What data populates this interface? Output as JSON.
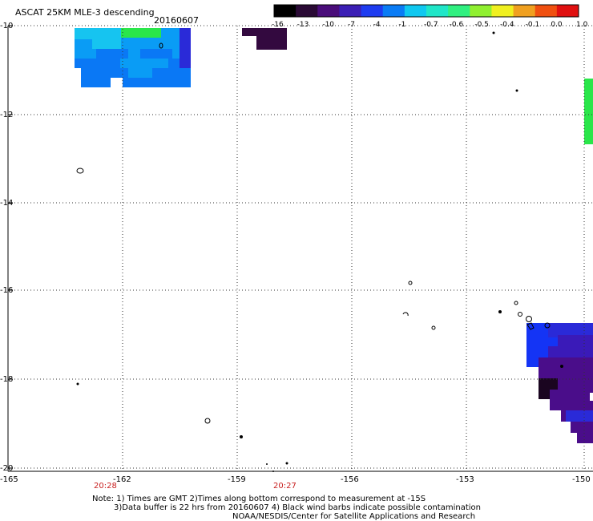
{
  "header": {
    "title": "ASCAT 25KM MLE-3 descending",
    "date": "20160607"
  },
  "colorbar": {
    "labels": [
      "-16",
      "-13",
      "-10",
      "-7",
      "-4",
      "-1",
      "-0.7",
      "-0.6",
      "-0.5",
      "-0.4",
      "-0.1",
      "0.0",
      "1.0"
    ],
    "colors": [
      "#000000",
      "#2a0a35",
      "#4a0d7a",
      "#3b1fb5",
      "#1e3cf0",
      "#0a7cf5",
      "#10c8f0",
      "#20e6c8",
      "#30f080",
      "#90f030",
      "#f0f020",
      "#f0a020",
      "#f05010",
      "#e01010"
    ]
  },
  "map": {
    "lat_labels": [
      "-10",
      "-12",
      "-14",
      "-16",
      "-18",
      "-20"
    ],
    "lon_labels": [
      "-165",
      "-162",
      "-159",
      "-156",
      "-153",
      "-150"
    ],
    "time_labels": [
      {
        "text": "20:28",
        "lon": -162.7
      },
      {
        "text": "20:27",
        "lon": -158.0
      }
    ],
    "palette": {
      "cyan": "#16c4f0",
      "skyblue": "#0a9cf5",
      "blue": "#0a78f5",
      "green": "#2ae64a",
      "deep_blue": "#1434f5",
      "royal": "#2a2ad8",
      "indigo": "#3a1ab8",
      "violet": "#4a0d8a",
      "dark_purple": "#33093f",
      "black_purple": "#1a0520"
    }
  },
  "notes": {
    "line1": "Note: 1) Times are GMT 2)Times along bottom correspond to measurement at -15S",
    "line2": "3)Data buffer is 22 hrs from 20160607 4) Black wind barbs indicate possible contamination",
    "line3": "NOAA/NESDIS/Center for Satellite Applications and Research"
  }
}
